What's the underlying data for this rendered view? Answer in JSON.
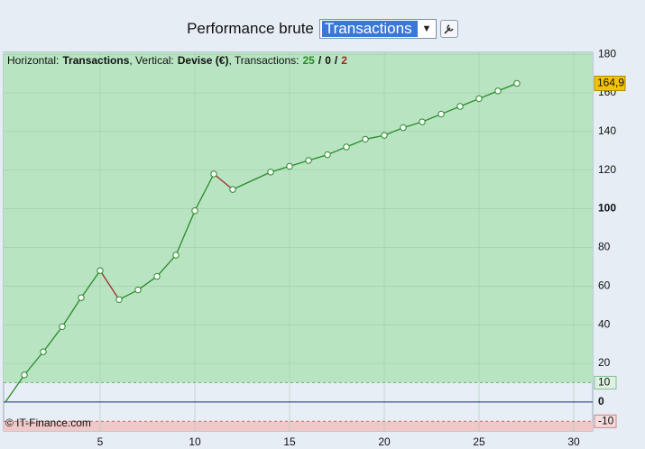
{
  "header": {
    "title": "Performance brute",
    "selector": "Transactions"
  },
  "chart_data": {
    "type": "line",
    "info": {
      "h_label": "Horizontal:",
      "h_value": "Transactions",
      "v_label": ", Vertical:",
      "v_value": "Devise (€)",
      "t_label": ", Transactions:",
      "wins": "25",
      "even": "0",
      "losses": "2",
      "sep": "/"
    },
    "copyright": "© IT-Finance.com",
    "x": [
      0,
      1,
      2,
      3,
      4,
      5,
      6,
      7,
      8,
      9,
      10,
      11,
      12,
      14,
      15,
      16,
      17,
      18,
      19,
      20,
      21,
      22,
      23,
      24,
      25,
      26,
      27
    ],
    "series": [
      {
        "name": "Transactions",
        "color": "#2a8a2a",
        "down_color": "#a02a2a",
        "values": [
          0,
          14,
          26,
          39,
          54,
          68,
          53,
          58,
          65,
          76,
          99,
          118,
          110,
          119,
          122,
          125,
          128,
          132,
          136,
          138,
          142,
          145,
          149,
          153,
          157,
          161,
          164.9
        ]
      }
    ],
    "last_label": {
      "value": 164.9,
      "label": "164,9"
    },
    "xlim": [
      0,
      31
    ],
    "xticks": [
      5,
      10,
      15,
      20,
      25,
      30
    ],
    "ylim": [
      -15,
      181
    ],
    "yticks": [
      0,
      20,
      40,
      60,
      80,
      100,
      120,
      140,
      160,
      180
    ],
    "zones": [
      {
        "value": 10,
        "label": "10"
      },
      {
        "value": -10,
        "label": "-10"
      }
    ],
    "grid": true
  }
}
